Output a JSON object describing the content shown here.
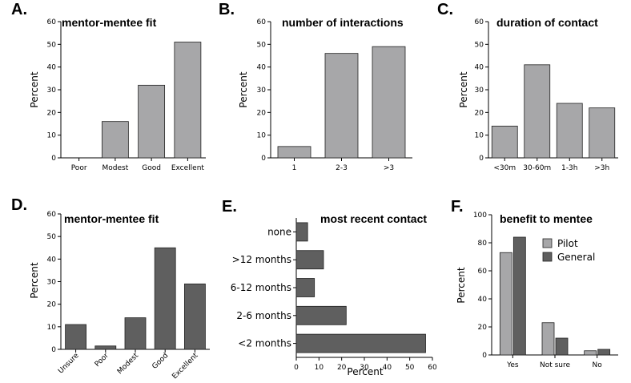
{
  "chart_data": [
    {
      "panel": "A.",
      "type": "bar",
      "title": "mentor-mentee fit",
      "ylabel": "Percent",
      "xlabel": "",
      "categories": [
        "Poor",
        "Modest",
        "Good",
        "Excellent"
      ],
      "values": [
        0,
        16,
        32,
        51
      ],
      "ylim": [
        0,
        60
      ],
      "yticks": [
        0,
        10,
        20,
        30,
        40,
        50,
        60
      ],
      "bar_color": "#a7a7a9",
      "grid": false
    },
    {
      "panel": "B.",
      "type": "bar",
      "title": "number of interactions",
      "ylabel": "Percent",
      "xlabel": "",
      "categories": [
        "1",
        "2-3",
        ">3"
      ],
      "values": [
        5,
        46,
        49
      ],
      "ylim": [
        0,
        60
      ],
      "yticks": [
        0,
        10,
        20,
        30,
        40,
        50,
        60
      ],
      "bar_color": "#a7a7a9",
      "grid": false
    },
    {
      "panel": "C.",
      "type": "bar",
      "title": "duration of contact",
      "ylabel": "Percent",
      "xlabel": "",
      "categories": [
        "<30m",
        "30-60m",
        "1-3h",
        ">3h"
      ],
      "values": [
        14,
        41,
        24,
        22
      ],
      "ylim": [
        0,
        60
      ],
      "yticks": [
        0,
        10,
        20,
        30,
        40,
        50,
        60
      ],
      "bar_color": "#a7a7a9",
      "grid": false
    },
    {
      "panel": "D.",
      "type": "bar",
      "title": "mentor-mentee fit",
      "ylabel": "Percent",
      "xlabel": "",
      "categories": [
        "Unsure",
        "Poor",
        "Modest",
        "Good",
        "Excellent"
      ],
      "values": [
        11,
        1.5,
        14,
        45,
        29
      ],
      "ylim": [
        0,
        60
      ],
      "yticks": [
        0,
        10,
        20,
        30,
        40,
        50,
        60
      ],
      "bar_color": "#5f5f5f",
      "grid": false
    },
    {
      "panel": "E.",
      "type": "bar",
      "orientation": "horizontal",
      "title": "most recent contact",
      "xlabel": "Percent",
      "ylabel": "",
      "categories": [
        "<2 months",
        "2-6 months",
        "6-12 months",
        ">12 months",
        "none"
      ],
      "values": [
        57,
        22,
        8,
        12,
        5
      ],
      "xlim": [
        0,
        60
      ],
      "xticks": [
        0,
        10,
        20,
        30,
        40,
        50,
        60
      ],
      "bar_color": "#5f5f5f",
      "grid": false
    },
    {
      "panel": "F.",
      "type": "bar",
      "title": "benefit to mentee",
      "ylabel": "Percent",
      "xlabel": "",
      "categories": [
        "Yes",
        "Not sure",
        "No"
      ],
      "series": [
        {
          "name": "Pilot",
          "values": [
            73,
            23,
            3
          ],
          "color": "#a7a7a9"
        },
        {
          "name": "General",
          "values": [
            84,
            12,
            4
          ],
          "color": "#5f5f5f"
        }
      ],
      "ylim": [
        0,
        100
      ],
      "yticks": [
        0,
        20,
        40,
        60,
        80,
        100
      ],
      "legend": "top-right",
      "grid": false
    }
  ]
}
